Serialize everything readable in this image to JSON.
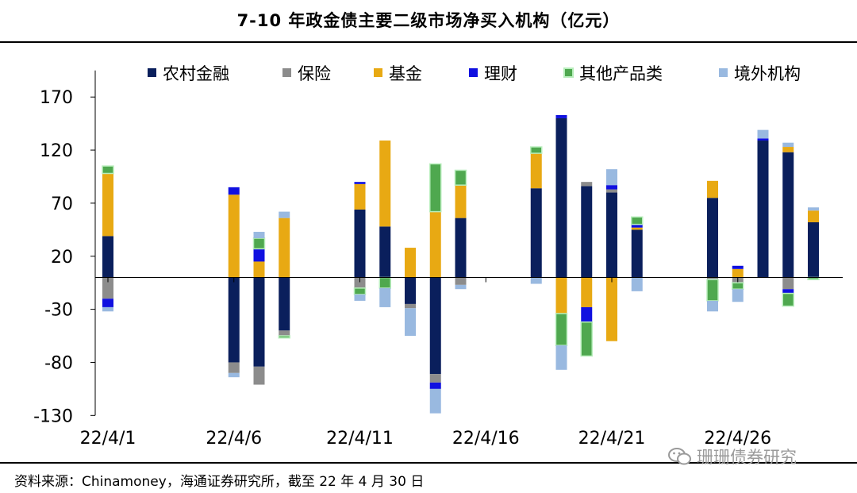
{
  "title": "7-10 年政金债主要二级市场净买入机构（亿元）",
  "source": "资料来源：Chinamoney，海通证券研究所，截至 22 年 4 月 30 日",
  "watermark": "珊珊债券研究",
  "chart_data": {
    "type": "bar",
    "stacked": true,
    "ylim": [
      -130,
      195
    ],
    "yticks": [
      170,
      120,
      70,
      20,
      -30,
      -80,
      -130
    ],
    "grid": false,
    "legend": "top",
    "x_tick_labels": [
      "22/4/1",
      "22/4/6",
      "22/4/11",
      "22/4/16",
      "22/4/21",
      "22/4/26"
    ],
    "x_tick_label_index": [
      0,
      5,
      10,
      15,
      20,
      25
    ],
    "categories": [
      "22/4/1",
      "22/4/2",
      "22/4/3",
      "22/4/4",
      "22/4/5",
      "22/4/6",
      "22/4/7",
      "22/4/8",
      "22/4/9",
      "22/4/10",
      "22/4/11",
      "22/4/12",
      "22/4/13",
      "22/4/14",
      "22/4/15",
      "22/4/16",
      "22/4/17",
      "22/4/18",
      "22/4/19",
      "22/4/20",
      "22/4/21",
      "22/4/22",
      "22/4/23",
      "22/4/24",
      "22/4/25",
      "22/4/26",
      "22/4/27",
      "22/4/28",
      "22/4/29"
    ],
    "series": [
      {
        "name": "农村金融",
        "color": "#0a1f5c",
        "border": "#0a1f5c",
        "values": [
          39,
          null,
          null,
          null,
          null,
          -80,
          -84,
          -50,
          null,
          null,
          64,
          48,
          -25,
          -91,
          56,
          null,
          null,
          84,
          150,
          86,
          80,
          45,
          null,
          null,
          75,
          0,
          129,
          118,
          52
        ]
      },
      {
        "name": "保险",
        "color": "#8c8c8c",
        "border": "#8c8c8c",
        "values": [
          -20,
          null,
          null,
          null,
          null,
          -10,
          -17,
          -5,
          null,
          null,
          -10,
          0,
          -4,
          -8,
          -7,
          null,
          null,
          0,
          0,
          4,
          3,
          0,
          null,
          null,
          -2,
          -5,
          0,
          -11,
          0
        ]
      },
      {
        "name": "基金",
        "color": "#e8a913",
        "border": "#e8a913",
        "values": [
          59,
          null,
          null,
          null,
          null,
          78,
          15,
          56,
          null,
          null,
          24,
          81,
          28,
          62,
          31,
          null,
          null,
          33,
          -34,
          -28,
          -60,
          2,
          null,
          null,
          16,
          8,
          0,
          5,
          11
        ]
      },
      {
        "name": "理财",
        "color": "#1010e0",
        "border": "#1010e0",
        "values": [
          -8,
          null,
          null,
          null,
          null,
          7,
          12,
          0,
          null,
          null,
          2,
          0,
          0,
          -6,
          0,
          null,
          null,
          0,
          3,
          -14,
          4,
          3,
          null,
          null,
          0,
          3,
          2,
          -4,
          0
        ]
      },
      {
        "name": "其他产品类",
        "color": "#4fa84f",
        "border": "#b8eebc",
        "values": [
          7,
          null,
          null,
          null,
          null,
          0,
          10,
          -2,
          null,
          null,
          -6,
          -10,
          0,
          45,
          14,
          null,
          null,
          6,
          -30,
          -32,
          0,
          7,
          null,
          null,
          -20,
          -6,
          0,
          -12,
          -2
        ]
      },
      {
        "name": "境外机构",
        "color": "#99b9e0",
        "border": "#99b9e0",
        "values": [
          -4,
          null,
          null,
          null,
          null,
          -4,
          6,
          6,
          null,
          null,
          -6,
          -18,
          -26,
          -23,
          -4,
          null,
          null,
          -6,
          -23,
          0,
          15,
          -13,
          null,
          null,
          -10,
          -12,
          8,
          4,
          3
        ]
      }
    ]
  }
}
